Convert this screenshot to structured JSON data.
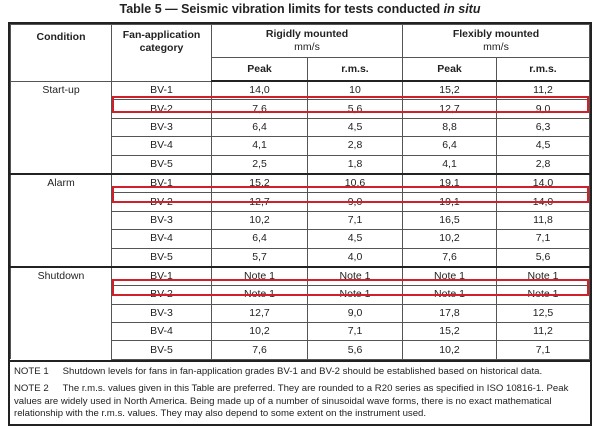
{
  "title": "Table 5 — Seismic vibration limits for tests conducted",
  "title_italic": "in situ",
  "headers": {
    "condition": "Condition",
    "category": "Fan-application category",
    "rigid": "Rigidly mounted",
    "flex": "Flexibly mounted",
    "unit": "mm/s",
    "peak": "Peak",
    "rms": "r.m.s."
  },
  "groups": [
    {
      "condition": "Start-up",
      "rows": [
        [
          "BV-1",
          "14,0",
          "10",
          "15,2",
          "11,2"
        ],
        [
          "BV-2",
          "7,6",
          "5,6",
          "12,7",
          "9,0"
        ],
        [
          "BV-3",
          "6,4",
          "4,5",
          "8,8",
          "6,3"
        ],
        [
          "BV-4",
          "4,1",
          "2,8",
          "6,4",
          "4,5"
        ],
        [
          "BV-5",
          "2,5",
          "1,8",
          "4,1",
          "2,8"
        ]
      ]
    },
    {
      "condition": "Alarm",
      "rows": [
        [
          "BV-1",
          "15,2",
          "10,6",
          "19,1",
          "14,0"
        ],
        [
          "BV-2",
          "12,7",
          "9,0",
          "19,1",
          "14,0"
        ],
        [
          "BV-3",
          "10,2",
          "7,1",
          "16,5",
          "11,8"
        ],
        [
          "BV-4",
          "6,4",
          "4,5",
          "10,2",
          "7,1"
        ],
        [
          "BV-5",
          "5,7",
          "4,0",
          "7,6",
          "5,6"
        ]
      ]
    },
    {
      "condition": "Shutdown",
      "rows": [
        [
          "BV-1",
          "Note 1",
          "Note 1",
          "Note 1",
          "Note 1"
        ],
        [
          "BV-2",
          "Note 1",
          "Note 1",
          "Note 1",
          "Note 1"
        ],
        [
          "BV-3",
          "12,7",
          "9,0",
          "17,8",
          "12,5"
        ],
        [
          "BV-4",
          "10,2",
          "7,1",
          "15,2",
          "11,2"
        ],
        [
          "BV-5",
          "7,6",
          "5,6",
          "10,2",
          "7,1"
        ]
      ]
    }
  ],
  "notes": [
    {
      "label": "NOTE 1",
      "text": "Shutdown levels for fans in fan-application grades BV-1 and BV-2 should be established based on historical data."
    },
    {
      "label": "NOTE 2",
      "text": "The r.m.s. values given in this Table are preferred. They are rounded to a R20 series as specified in ISO 10816-1. Peak values are widely used in North America. Being made up of a number of sinusoidal wave forms, there is no exact mathematical relationship with the r.m.s. values. They may also depend to some extent on the instrument used."
    }
  ],
  "highlight_color": "#d0202a"
}
